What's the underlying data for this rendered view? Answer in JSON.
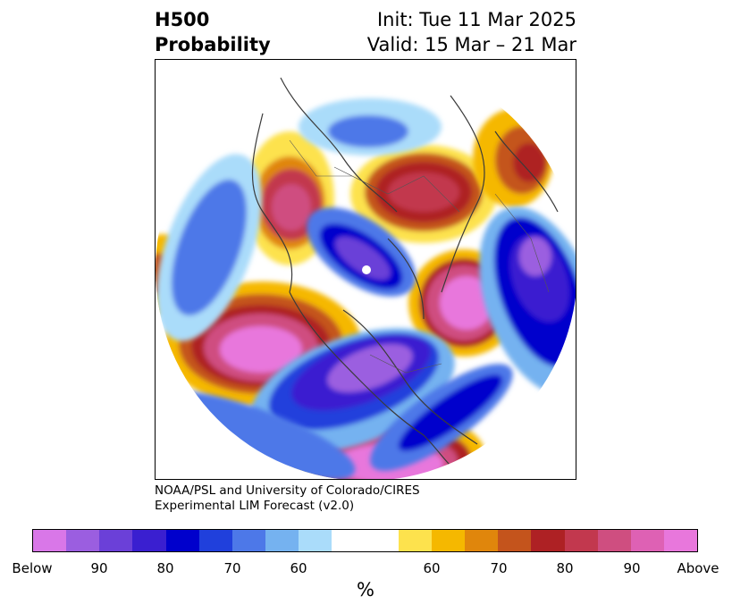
{
  "title": {
    "left_line1": "H500",
    "left_line2": "Probability",
    "right_line1": "Init: Tue 11 Mar 2025",
    "right_line2": "Valid: 15 Mar – 21 Mar"
  },
  "credit": {
    "line1": "NOAA/PSL and University of Colorado/CIRES",
    "line2": "Experimental LIM Forecast (v2.0)"
  },
  "colorbar": {
    "colors": [
      "#d977e8",
      "#9b5ee0",
      "#6b40d8",
      "#3a1fd0",
      "#0000cc",
      "#2040dc",
      "#4d78e8",
      "#75b2f0",
      "#aadcfa",
      "#ffffff",
      "#ffffff",
      "#fde24d",
      "#f5b800",
      "#e0860c",
      "#c4541c",
      "#ae2124",
      "#c2384e",
      "#cf4e80",
      "#de61b4",
      "#e877dc"
    ],
    "ticks": [
      "Below",
      "90",
      "80",
      "70",
      "60",
      "60",
      "70",
      "80",
      "90",
      "Above"
    ],
    "unit": "%"
  }
}
